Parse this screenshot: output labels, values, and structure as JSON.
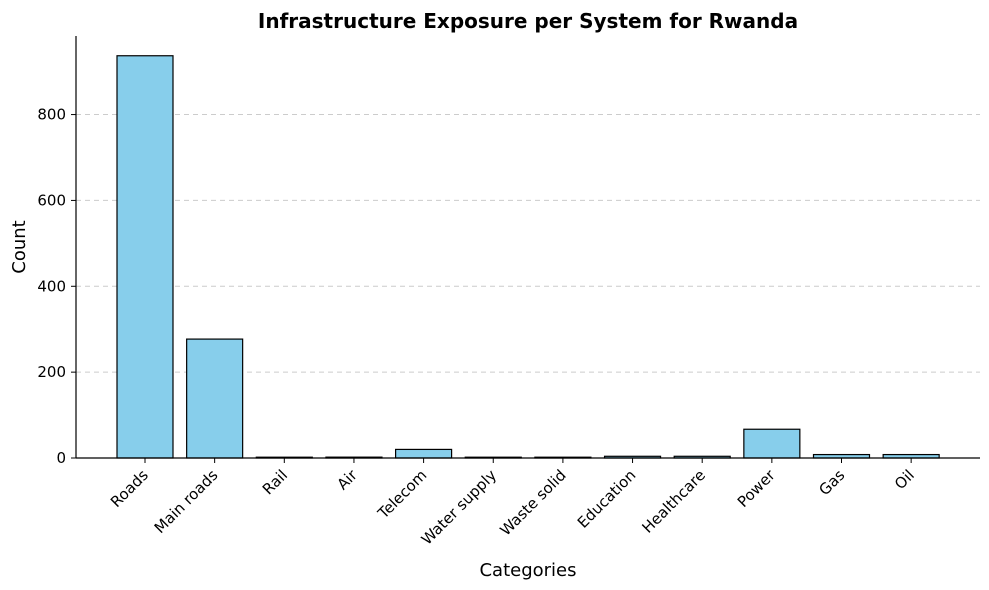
{
  "chart_data": {
    "type": "bar",
    "title": "Infrastructure Exposure per System for Rwanda",
    "xlabel": "Categories",
    "ylabel": "Count",
    "categories": [
      "Roads",
      "Main roads",
      "Rail",
      "Air",
      "Telecom",
      "Water supply",
      "Waste solid",
      "Education",
      "Healthcare",
      "Power",
      "Gas",
      "Oil"
    ],
    "values": [
      937,
      277,
      0,
      2,
      20,
      0,
      0,
      4,
      4,
      67,
      8,
      8
    ],
    "yticks": [
      0,
      200,
      400,
      600,
      800
    ],
    "ylim": [
      0,
      983
    ],
    "grid": "y-dashed",
    "bar_color": "#87CEEB",
    "edge_color": "#000000"
  }
}
